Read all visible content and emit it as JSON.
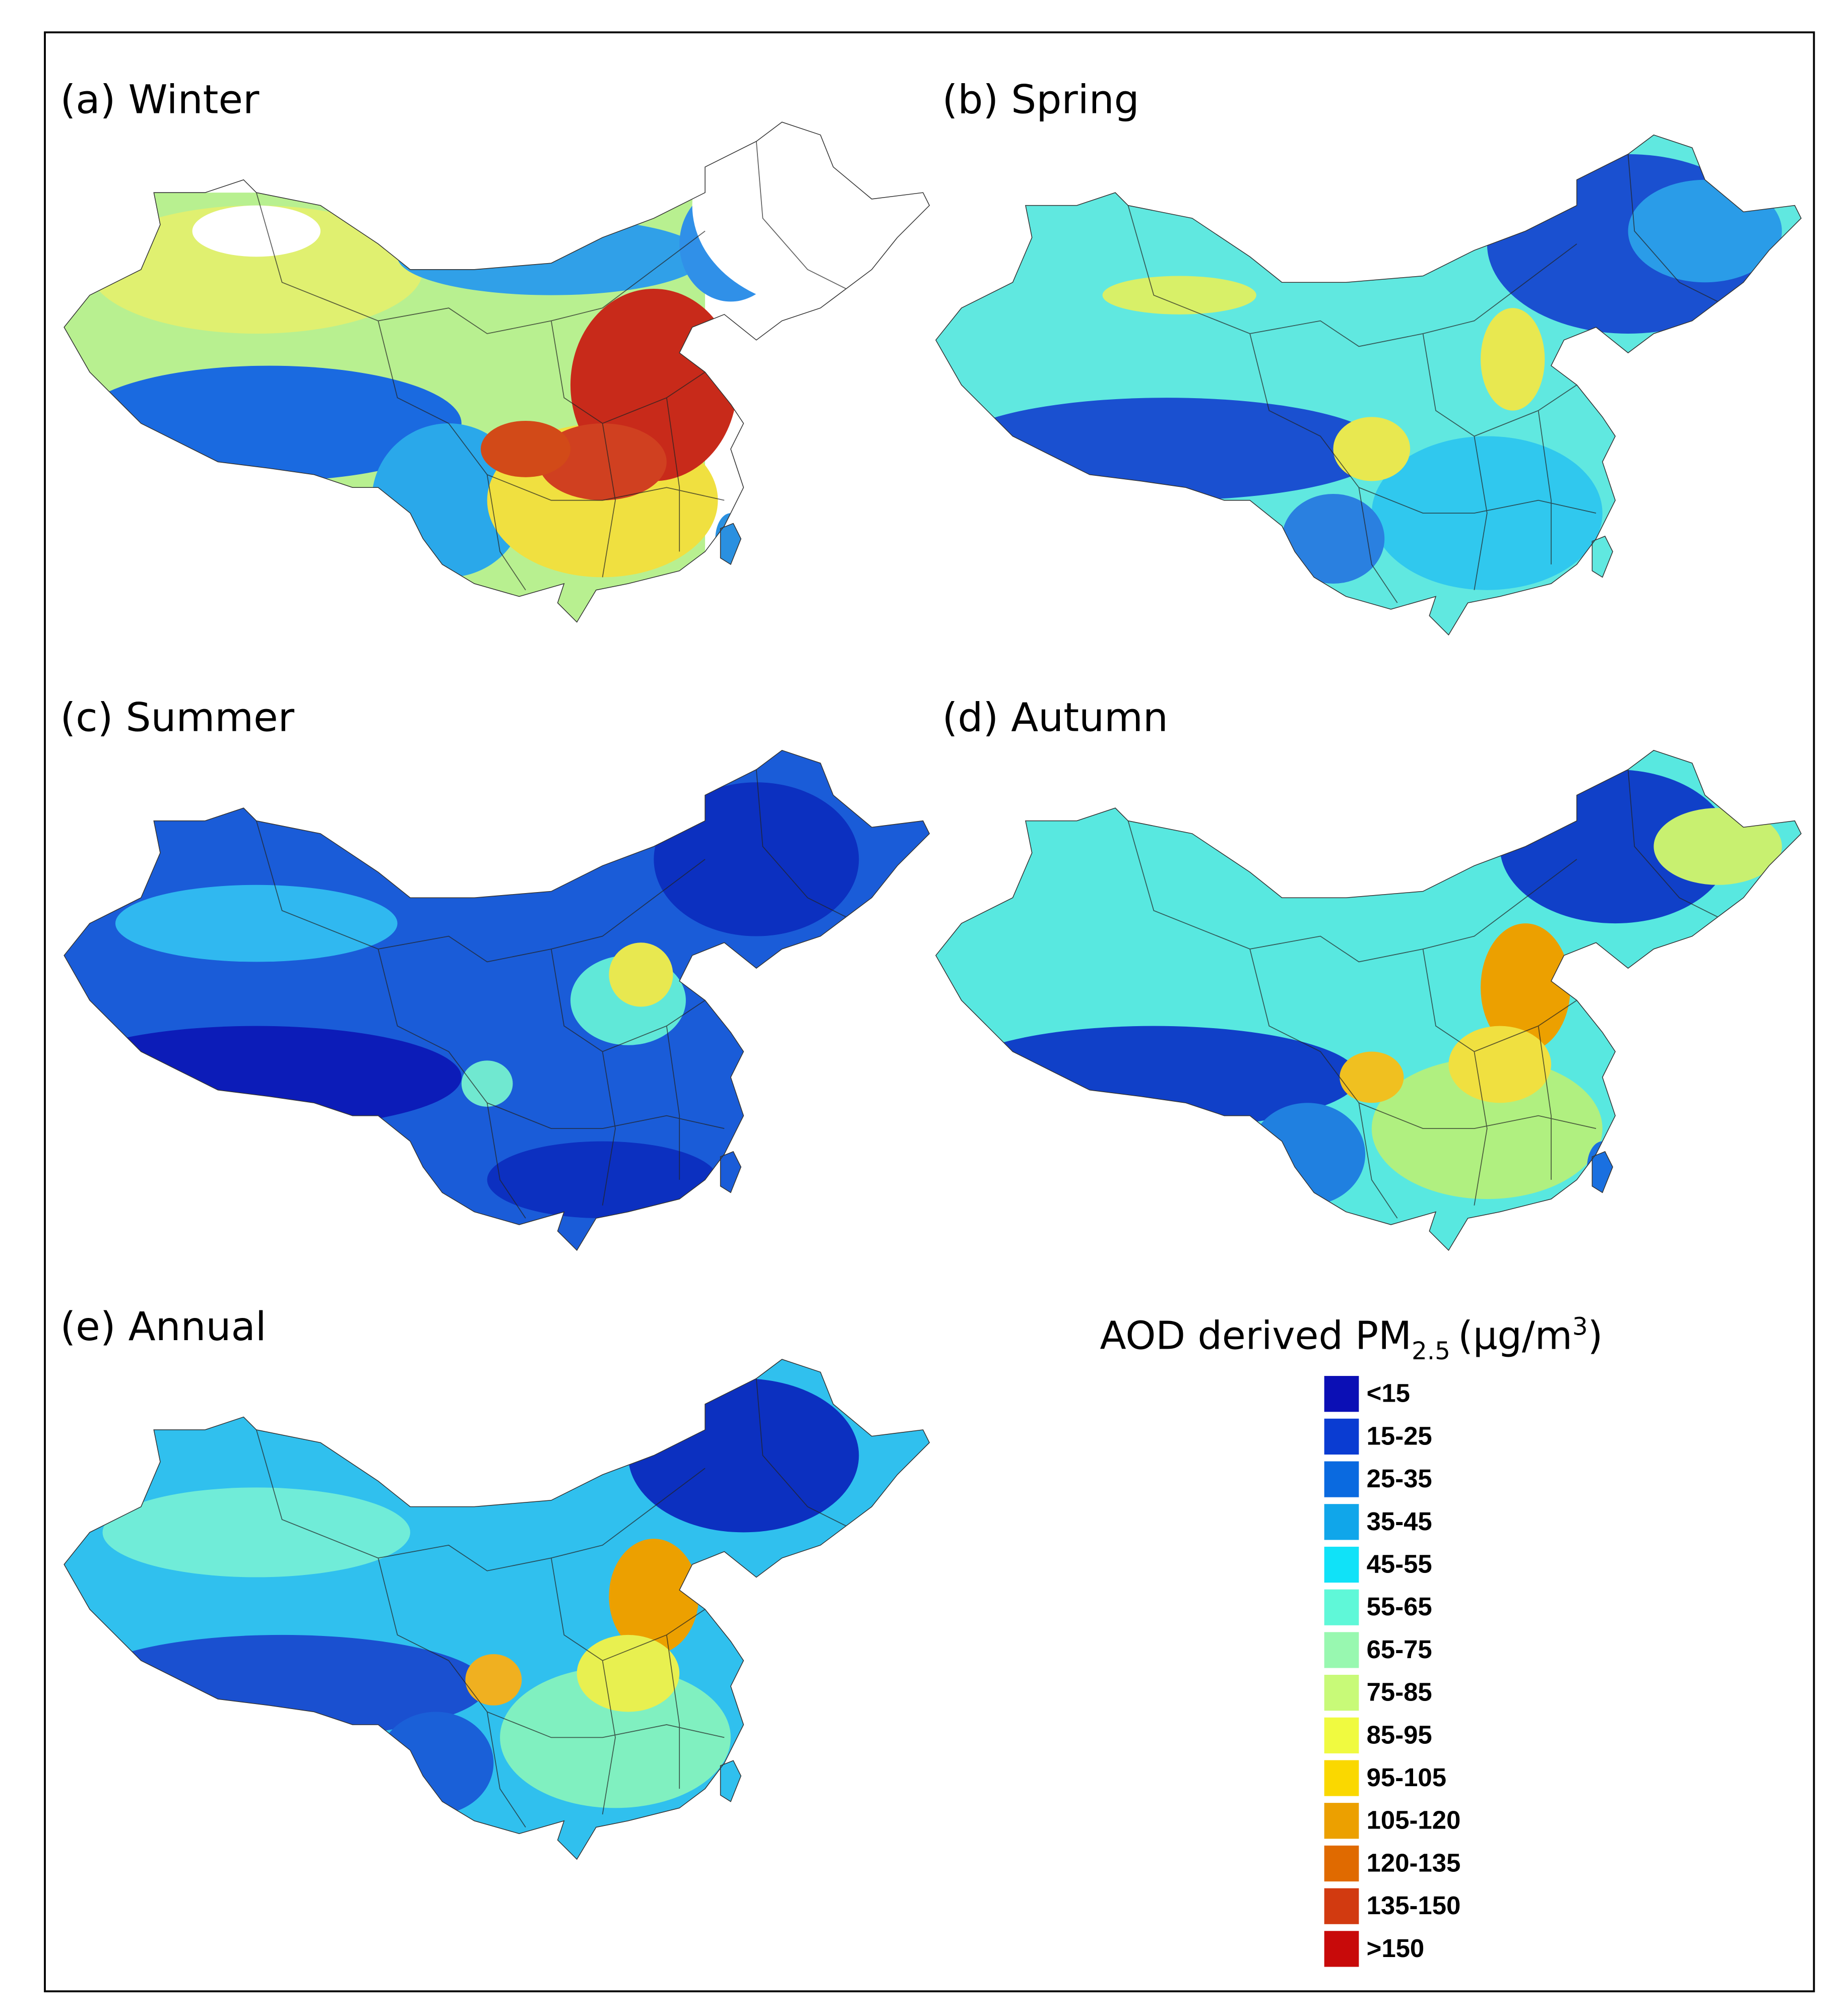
{
  "panels": [
    {
      "title": "(a) Winter"
    },
    {
      "title": "(b) Spring"
    },
    {
      "title": "(c) Summer"
    },
    {
      "title": "(d) Autumn"
    },
    {
      "title": "(e) Annual"
    }
  ],
  "legend": {
    "title": {
      "text": "AOD derived PM",
      "subscript": "2.5",
      "unit_open": "(μg/m",
      "superscript": "3",
      "unit_close": ")"
    },
    "items": [
      {
        "label": "<15",
        "color": "#0b0fb5"
      },
      {
        "label": "15-25",
        "color": "#0a3cd2"
      },
      {
        "label": "25-35",
        "color": "#0a6ae0"
      },
      {
        "label": "35-45",
        "color": "#10a6ea"
      },
      {
        "label": "45-55",
        "color": "#10e2f8"
      },
      {
        "label": "55-65",
        "color": "#5ff8d8"
      },
      {
        "label": "65-75",
        "color": "#98f8b0"
      },
      {
        "label": "75-85",
        "color": "#c8fa78"
      },
      {
        "label": "85-95",
        "color": "#f0fa40"
      },
      {
        "label": "95-105",
        "color": "#fad800"
      },
      {
        "label": "105-120",
        "color": "#eca000"
      },
      {
        "label": "120-135",
        "color": "#e06a00"
      },
      {
        "label": "135-150",
        "color": "#d23a10"
      },
      {
        "label": ">150",
        "color": "#c80a0a"
      }
    ]
  }
}
